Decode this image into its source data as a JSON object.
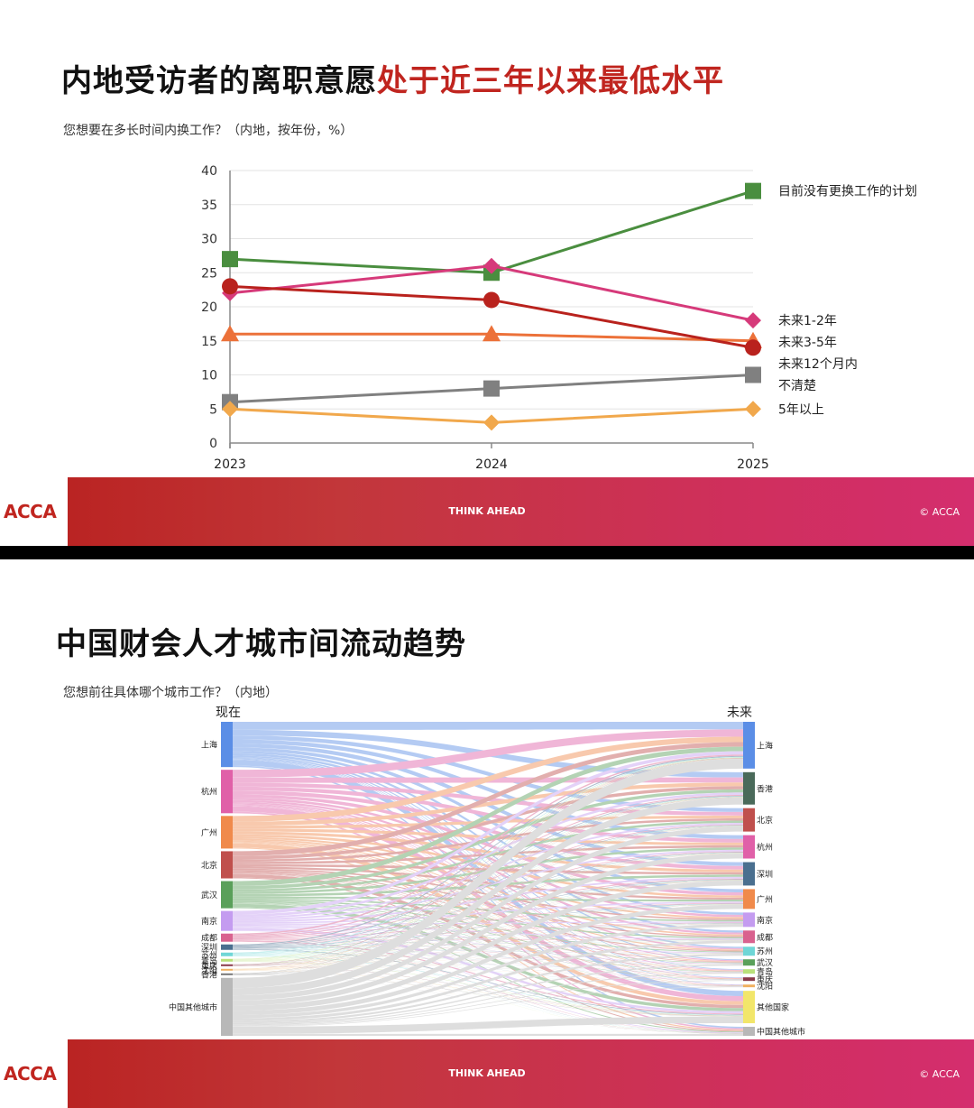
{
  "slides": [
    {
      "title_main": "内地受访者的离职意愿",
      "title_highlight": "处于近三年以来最低水平",
      "subtitle": "您想要在多长时间内换工作？（内地，按年份，%）"
    },
    {
      "title_main": "中国财会人才城市间流动趋势",
      "subtitle": "您想前往具体哪个城市工作？（内地）"
    }
  ],
  "footer": {
    "logo": "ACCA",
    "tagline": "THINK AHEAD",
    "copyright": "© ACCA"
  },
  "chart_data": [
    {
      "type": "line",
      "x": [
        "2023",
        "2024",
        "2025"
      ],
      "ylim": [
        0,
        40
      ],
      "yticks": [
        0,
        5,
        10,
        15,
        20,
        25,
        30,
        35,
        40
      ],
      "grid": true,
      "legend_placement": "right (labels at line ends)",
      "series": [
        {
          "name": "目前没有更换工作的计划",
          "values": [
            27,
            25,
            37
          ],
          "color": "#4a8e3f",
          "marker": "square"
        },
        {
          "name": "未来1-2年",
          "values": [
            22,
            26,
            18
          ],
          "color": "#d63a7a",
          "marker": "diamond"
        },
        {
          "name": "未来3-5年",
          "values": [
            16,
            16,
            15
          ],
          "color": "#ec7139",
          "marker": "triangle"
        },
        {
          "name": "未来12个月内",
          "values": [
            23,
            21,
            14
          ],
          "color": "#b9221d",
          "marker": "circle"
        },
        {
          "name": "不清楚",
          "values": [
            6,
            8,
            10
          ],
          "color": "#808080",
          "marker": "square"
        },
        {
          "name": "5年以上",
          "values": [
            5,
            3,
            5
          ],
          "color": "#f1a84c",
          "marker": "diamond"
        }
      ]
    },
    {
      "type": "sankey",
      "left_header": "现在",
      "right_header": "未来",
      "left_nodes": [
        {
          "name": "上海",
          "color": "#5b8ee6",
          "weight": 50
        },
        {
          "name": "杭州",
          "color": "#e060a8",
          "weight": 48
        },
        {
          "name": "广州",
          "color": "#f08a4b",
          "weight": 36
        },
        {
          "name": "北京",
          "color": "#c0504d",
          "weight": 30
        },
        {
          "name": "武汉",
          "color": "#5aa05a",
          "weight": 30
        },
        {
          "name": "南京",
          "color": "#c49cf0",
          "weight": 22
        },
        {
          "name": "成都",
          "color": "#d9628f",
          "weight": 9
        },
        {
          "name": "深圳",
          "color": "#4a6f8f",
          "weight": 6
        },
        {
          "name": "苏州",
          "color": "#6fd6d6",
          "weight": 4
        },
        {
          "name": "青岛",
          "color": "#b9e07a",
          "weight": 3
        },
        {
          "name": "重庆",
          "color": "#8a3a4a",
          "weight": 2
        },
        {
          "name": "沈阳",
          "color": "#f0b060",
          "weight": 2
        },
        {
          "name": "香港",
          "color": "#777777",
          "weight": 2
        },
        {
          "name": "中国其他城市",
          "color": "#b8b8b8",
          "weight": 64
        }
      ],
      "right_nodes": [
        {
          "name": "上海",
          "color": "#5b8ee6",
          "weight": 52
        },
        {
          "name": "香港",
          "color": "#4a6a5a",
          "weight": 36
        },
        {
          "name": "北京",
          "color": "#c0504d",
          "weight": 26
        },
        {
          "name": "杭州",
          "color": "#e060a8",
          "weight": 26
        },
        {
          "name": "深圳",
          "color": "#4a6f8f",
          "weight": 26
        },
        {
          "name": "广州",
          "color": "#f08a4b",
          "weight": 22
        },
        {
          "name": "南京",
          "color": "#c49cf0",
          "weight": 16
        },
        {
          "name": "成都",
          "color": "#d9628f",
          "weight": 14
        },
        {
          "name": "苏州",
          "color": "#6fd6d6",
          "weight": 10
        },
        {
          "name": "武汉",
          "color": "#5aa05a",
          "weight": 7
        },
        {
          "name": "青岛",
          "color": "#b9e07a",
          "weight": 5
        },
        {
          "name": "重庆",
          "color": "#8a3a4a",
          "weight": 4
        },
        {
          "name": "沈阳",
          "color": "#f0b060",
          "weight": 3
        },
        {
          "name": "其他国家",
          "color": "#f2e66a",
          "weight": 36
        },
        {
          "name": "中国其他城市",
          "color": "#b8b8b8",
          "weight": 10
        }
      ]
    }
  ]
}
